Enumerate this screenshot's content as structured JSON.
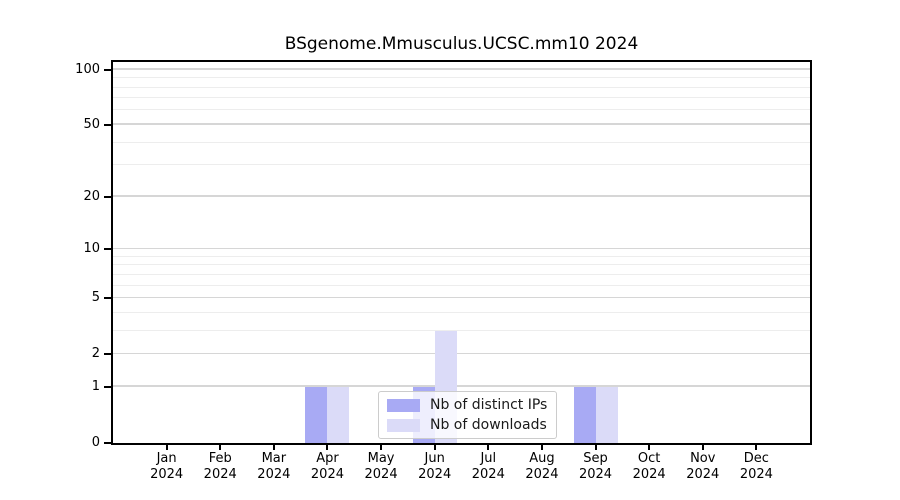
{
  "chart_data": {
    "type": "bar",
    "title": "BSgenome.Mmusculus.UCSC.mm10 2024",
    "categories": [
      {
        "month": "Jan",
        "year": "2024"
      },
      {
        "month": "Feb",
        "year": "2024"
      },
      {
        "month": "Mar",
        "year": "2024"
      },
      {
        "month": "Apr",
        "year": "2024"
      },
      {
        "month": "May",
        "year": "2024"
      },
      {
        "month": "Jun",
        "year": "2024"
      },
      {
        "month": "Jul",
        "year": "2024"
      },
      {
        "month": "Aug",
        "year": "2024"
      },
      {
        "month": "Sep",
        "year": "2024"
      },
      {
        "month": "Oct",
        "year": "2024"
      },
      {
        "month": "Nov",
        "year": "2024"
      },
      {
        "month": "Dec",
        "year": "2024"
      }
    ],
    "series": [
      {
        "name": "Nb of distinct IPs",
        "color": "#a8aaf4",
        "values": [
          0,
          0,
          0,
          1,
          0,
          1,
          0,
          0,
          1,
          0,
          0,
          0
        ]
      },
      {
        "name": "Nb of downloads",
        "color": "#dbdbf8",
        "values": [
          0,
          0,
          0,
          1,
          0,
          3,
          0,
          0,
          1,
          0,
          0,
          0
        ]
      }
    ],
    "y_axis": {
      "scale": "log1p",
      "ticks": [
        0,
        1,
        2,
        5,
        10,
        20,
        50,
        100
      ],
      "minor_gridlines": [
        3,
        4,
        6,
        7,
        8,
        9,
        30,
        40,
        60,
        70,
        80,
        90
      ],
      "axis_max": 110
    },
    "xlabel": "",
    "ylabel": "",
    "grid": "horizontal",
    "legend_position": "lower center"
  },
  "style": {
    "major_grid_color": "#d6d6d6",
    "minor_grid_color": "#ededed",
    "axis_color": "#000000",
    "text_color": "#000000",
    "legend_border_color": "#cccccc",
    "background": "#ffffff"
  }
}
